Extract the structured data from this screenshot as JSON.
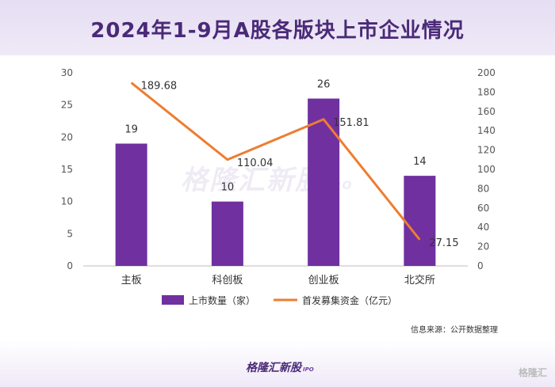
{
  "title": "2024年1-9月A股各版块上市企业情况",
  "source": "信息来源：公开数据整理",
  "brand": {
    "name": "格隆汇新股",
    "suffix": "IPO"
  },
  "corner_logo": "格隆汇",
  "colors": {
    "bar": "#7030a0",
    "line": "#ed7d31",
    "header": "#4a2a78"
  },
  "chart_data": {
    "type": "bar",
    "categories": [
      "主板",
      "科创板",
      "创业板",
      "北交所"
    ],
    "series": [
      {
        "name": "上市数量（家）",
        "type": "bar",
        "axis": "left",
        "values": [
          19,
          10,
          26,
          14
        ]
      },
      {
        "name": "首发募集资金（亿元）",
        "type": "line",
        "axis": "right",
        "values": [
          189.68,
          110.04,
          151.81,
          27.15
        ]
      }
    ],
    "y_left": {
      "ylim": [
        0,
        30
      ],
      "ticks": [
        0,
        5,
        10,
        15,
        20,
        25,
        30
      ]
    },
    "y_right": {
      "ylim": [
        0,
        200
      ],
      "ticks": [
        0,
        20,
        40,
        60,
        80,
        100,
        120,
        140,
        160,
        180,
        200
      ]
    },
    "bar_labels": [
      "19",
      "10",
      "26",
      "14"
    ],
    "line_labels": [
      "189.68",
      "110.04",
      "151.81",
      "27.15"
    ],
    "legend_position": "bottom",
    "grid": false
  }
}
